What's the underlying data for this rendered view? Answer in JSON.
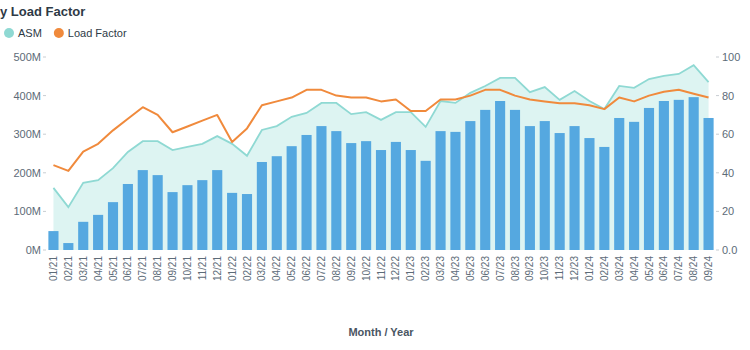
{
  "chart_data": {
    "type": "bar",
    "title": "y Load Factor",
    "x_label": "Month / Year",
    "legend": "top-left",
    "grid": false,
    "categories": [
      "01/21",
      "02/21",
      "03/21",
      "04/21",
      "05/21",
      "06/21",
      "07/21",
      "08/21",
      "09/21",
      "10/21",
      "11/21",
      "12/21",
      "01/22",
      "02/22",
      "03/22",
      "04/22",
      "05/22",
      "06/22",
      "07/22",
      "08/22",
      "09/22",
      "10/22",
      "11/22",
      "12/22",
      "01/23",
      "02/23",
      "03/23",
      "04/23",
      "05/23",
      "06/23",
      "07/23",
      "08/23",
      "09/23",
      "10/23",
      "11/23",
      "12/23",
      "01/24",
      "02/24",
      "03/24",
      "04/24",
      "05/24",
      "06/24",
      "07/24",
      "08/24",
      "09/24"
    ],
    "ylim": [
      0,
      500
    ],
    "yticks": [
      {
        "value": 0,
        "label": "0M"
      },
      {
        "value": 100,
        "label": "100M"
      },
      {
        "value": 200,
        "label": "200M"
      },
      {
        "value": 300,
        "label": "300M"
      },
      {
        "value": 400,
        "label": "400M"
      },
      {
        "value": 500,
        "label": "500M"
      }
    ],
    "y2lim": [
      0,
      100
    ],
    "y2ticks": [
      {
        "value": 0,
        "label": "0.0"
      },
      20,
      40,
      60,
      80,
      100
    ],
    "series": [
      {
        "name": "ASM",
        "type": "area",
        "color": "#8fd9d3",
        "values": [
          161,
          111,
          174,
          181,
          212,
          254,
          282,
          282,
          259,
          267,
          275,
          295,
          275,
          244,
          311,
          321,
          345,
          355,
          381,
          381,
          352,
          357,
          337,
          357,
          357,
          319,
          386,
          381,
          407,
          425,
          446,
          446,
          409,
          422,
          389,
          412,
          386,
          365,
          425,
          420,
          443,
          451,
          456,
          479,
          435
        ]
      },
      {
        "type": "bar",
        "color": "#55a8e0",
        "values": [
          49,
          18,
          73,
          91,
          124,
          171,
          207,
          194,
          150,
          168,
          181,
          207,
          148,
          145,
          228,
          243,
          269,
          298,
          321,
          308,
          277,
          282,
          259,
          280,
          259,
          231,
          308,
          306,
          334,
          363,
          386,
          363,
          321,
          334,
          303,
          321,
          290,
          267,
          342,
          332,
          368,
          386,
          389,
          396,
          342
        ]
      },
      {
        "name": "Load Factor",
        "type": "line",
        "axis": "y2",
        "color": "#f08a3c",
        "values": [
          44,
          41,
          51,
          55,
          62,
          68,
          74,
          70,
          61,
          64,
          67,
          70,
          56,
          63,
          75,
          77,
          79,
          83,
          83,
          80,
          79,
          79,
          77,
          78,
          72,
          72,
          78,
          78,
          80,
          83,
          83,
          80,
          78,
          77,
          76,
          76,
          75,
          73,
          79,
          77,
          80,
          82,
          83,
          81,
          79
        ]
      }
    ]
  }
}
